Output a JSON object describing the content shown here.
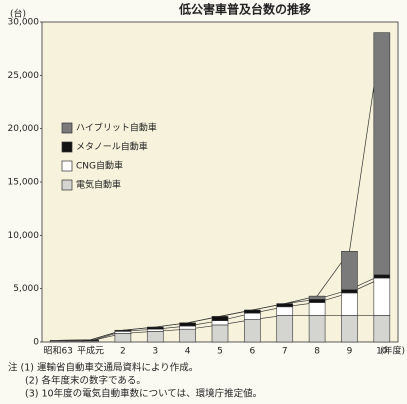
{
  "chart_data": {
    "type": "bar",
    "stacked": true,
    "title": "低公害車普及台数の推移",
    "y_label": "(台)",
    "x_label": "(年度)",
    "categories": [
      "昭和63",
      "平成元",
      "2",
      "3",
      "4",
      "5",
      "6",
      "7",
      "8",
      "9",
      "10"
    ],
    "series": [
      {
        "name": "電気自動車",
        "color": "#d4d4d0",
        "values": [
          100,
          100,
          800,
          1000,
          1200,
          1600,
          2100,
          2500,
          2500,
          2500,
          2500
        ]
      },
      {
        "name": "CNG自動車",
        "color": "#ffffff",
        "values": [
          0,
          0,
          200,
          200,
          300,
          400,
          600,
          800,
          1200,
          2100,
          3500
        ]
      },
      {
        "name": "メタノール自動車",
        "color": "#111111",
        "values": [
          50,
          100,
          100,
          200,
          300,
          400,
          300,
          300,
          300,
          300,
          300
        ]
      },
      {
        "name": "ハイブリット自動車",
        "color": "#7a7a7a",
        "values": [
          0,
          0,
          0,
          0,
          0,
          0,
          0,
          0,
          300,
          3600,
          22700
        ]
      }
    ],
    "ylim": [
      0,
      30000
    ],
    "yticks": [
      0,
      {
        "value": 5000,
        "label": "5,000"
      },
      {
        "value": 10000,
        "label": "10,000"
      },
      {
        "value": 15000,
        "label": "15,000"
      },
      {
        "value": 20000,
        "label": "20,000"
      },
      {
        "value": 25000,
        "label": "25,000"
      },
      {
        "value": 30000,
        "label": "30,000"
      }
    ],
    "notes": [
      "注 (1) 運輸省自動車交通局資料により作成。",
      "(2) 各年度末の数字である。",
      "(3) 10年度の電気自動車数については、環境庁推定値。"
    ]
  }
}
